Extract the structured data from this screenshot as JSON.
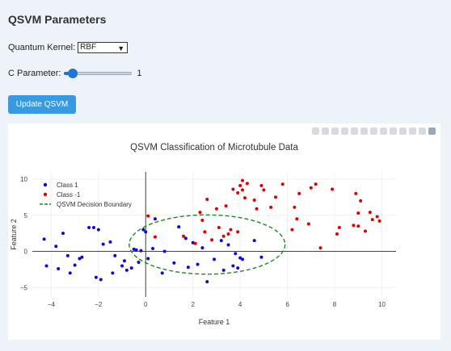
{
  "panel": {
    "title": "QSVM Parameters",
    "kernel_label": "Quantum Kernel:",
    "kernel_value": "RBF",
    "c_label": "C Parameter:",
    "c_value": "1",
    "c_fraction": 0.05,
    "button_label": "Update QSVM"
  },
  "modebar_icons": [
    "camera-icon",
    "zoom-icon",
    "pan-icon",
    "box-select-icon",
    "lasso-icon",
    "zoom-in-icon",
    "zoom-out-icon",
    "autoscale-icon",
    "reset-axes-icon",
    "spike-lines-icon",
    "hover-closest-icon",
    "hover-compare-icon",
    "plotly-logo-icon"
  ],
  "colors": {
    "class1": "#0a0adf",
    "class_neg1": "#e00000",
    "boundary": "#1a8a1a",
    "accent": "#3a9ae0"
  },
  "chart_data": {
    "type": "scatter",
    "title": "QSVM Classification of Microtubule Data",
    "xlabel": "Feature 1",
    "ylabel": "Feature 2",
    "xlim": [
      -4.8,
      10.6
    ],
    "ylim": [
      -6.3,
      11
    ],
    "xticks": [
      -4,
      -2,
      0,
      2,
      4,
      6,
      8,
      10
    ],
    "yticks": [
      -5,
      0,
      5,
      10
    ],
    "legend_position": "top-left",
    "grid": true,
    "series": [
      {
        "name": "Class 1",
        "color": "#0a0adf",
        "points": [
          [
            -4.3,
            1.7
          ],
          [
            -4.2,
            -2.0
          ],
          [
            -3.8,
            0.7
          ],
          [
            -3.7,
            -2.4
          ],
          [
            -3.5,
            2.5
          ],
          [
            -3.3,
            -0.6
          ],
          [
            -3.2,
            -3.0
          ],
          [
            -3.0,
            -1.9
          ],
          [
            -2.8,
            -1.0
          ],
          [
            -2.7,
            -0.8
          ],
          [
            -2.4,
            3.3
          ],
          [
            -2.2,
            3.3
          ],
          [
            -2.1,
            -3.6
          ],
          [
            -2.0,
            3.0
          ],
          [
            -1.9,
            -3.9
          ],
          [
            -1.8,
            1.0
          ],
          [
            -1.5,
            1.3
          ],
          [
            -1.4,
            -3.0
          ],
          [
            -1.3,
            -0.6
          ],
          [
            -1.0,
            -2.0
          ],
          [
            -0.9,
            -1.3
          ],
          [
            -0.8,
            -2.6
          ],
          [
            -0.6,
            -2.3
          ],
          [
            -0.5,
            0.3
          ],
          [
            -0.4,
            0.2
          ],
          [
            -0.3,
            -1.5
          ],
          [
            -0.2,
            0.1
          ],
          [
            -0.1,
            3.0
          ],
          [
            0.0,
            2.7
          ],
          [
            0.1,
            -1.0
          ],
          [
            0.3,
            0.4
          ],
          [
            0.4,
            4.5
          ],
          [
            0.7,
            -3.0
          ],
          [
            0.8,
            0.0
          ],
          [
            1.2,
            -1.6
          ],
          [
            1.4,
            3.4
          ],
          [
            1.7,
            1.8
          ],
          [
            1.8,
            -2.2
          ],
          [
            2.0,
            1.2
          ],
          [
            2.2,
            -1.8
          ],
          [
            2.4,
            0.5
          ],
          [
            2.6,
            -4.2
          ],
          [
            2.9,
            -1.1
          ],
          [
            3.2,
            1.5
          ],
          [
            3.3,
            -2.6
          ],
          [
            3.5,
            0.9
          ],
          [
            3.7,
            -2.0
          ],
          [
            3.8,
            -0.3
          ],
          [
            3.9,
            -2.3
          ],
          [
            4.0,
            -0.9
          ],
          [
            4.1,
            -1.1
          ],
          [
            4.6,
            1.5
          ],
          [
            4.9,
            -0.8
          ]
        ]
      },
      {
        "name": "Class -1",
        "color": "#e00000",
        "points": [
          [
            0.1,
            4.9
          ],
          [
            0.4,
            2.0
          ],
          [
            1.6,
            2.1
          ],
          [
            2.1,
            1.1
          ],
          [
            2.3,
            5.4
          ],
          [
            2.4,
            4.3
          ],
          [
            2.5,
            2.7
          ],
          [
            2.6,
            7.2
          ],
          [
            2.8,
            1.6
          ],
          [
            3.0,
            5.9
          ],
          [
            3.1,
            3.3
          ],
          [
            3.3,
            2.1
          ],
          [
            3.4,
            6.3
          ],
          [
            3.5,
            2.4
          ],
          [
            3.6,
            3.0
          ],
          [
            3.7,
            8.6
          ],
          [
            3.9,
            2.7
          ],
          [
            3.9,
            8.1
          ],
          [
            4.0,
            9.1
          ],
          [
            4.1,
            8.5
          ],
          [
            4.1,
            9.8
          ],
          [
            4.2,
            7.4
          ],
          [
            4.3,
            9.4
          ],
          [
            4.6,
            7.1
          ],
          [
            4.7,
            5.9
          ],
          [
            4.9,
            9.1
          ],
          [
            5.0,
            8.5
          ],
          [
            5.3,
            6.1
          ],
          [
            5.5,
            7.5
          ],
          [
            5.8,
            9.3
          ],
          [
            6.2,
            3.0
          ],
          [
            6.3,
            6.1
          ],
          [
            6.4,
            4.5
          ],
          [
            6.5,
            8.0
          ],
          [
            6.9,
            3.8
          ],
          [
            7.0,
            8.8
          ],
          [
            7.2,
            9.3
          ],
          [
            7.4,
            0.5
          ],
          [
            7.9,
            8.6
          ],
          [
            8.1,
            2.4
          ],
          [
            8.2,
            3.3
          ],
          [
            8.8,
            3.6
          ],
          [
            8.9,
            8.0
          ],
          [
            9.0,
            5.3
          ],
          [
            9.0,
            3.5
          ],
          [
            9.1,
            7.0
          ],
          [
            9.3,
            2.8
          ],
          [
            9.5,
            5.4
          ],
          [
            9.6,
            4.4
          ],
          [
            9.8,
            4.8
          ],
          [
            9.9,
            4.2
          ]
        ]
      },
      {
        "name": "QSVM Decision Boundary",
        "color": "#1a8a1a",
        "shape": "ellipse",
        "center": [
          2.6,
          0.95
        ],
        "radii": [
          3.3,
          4.1
        ]
      }
    ]
  }
}
